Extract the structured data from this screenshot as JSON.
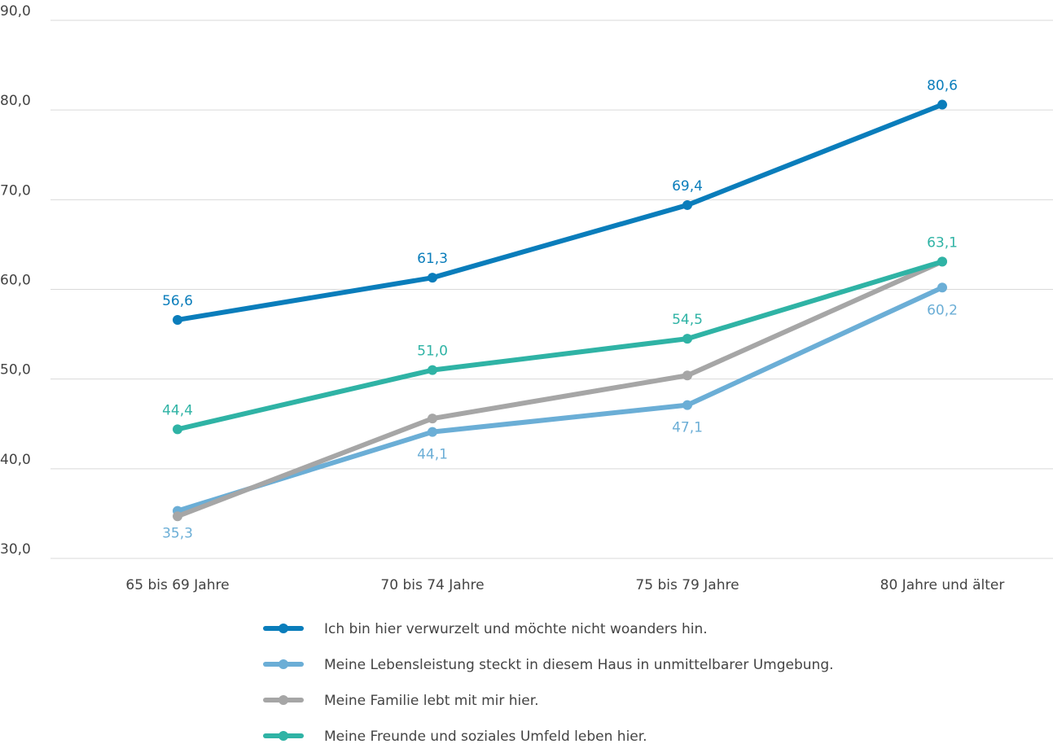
{
  "chart_data": {
    "type": "line",
    "categories": [
      "65 bis 69 Jahre",
      "70 bis 74 Jahre",
      "75 bis 79 Jahre",
      "80 Jahre und älter"
    ],
    "ylim": [
      30,
      90
    ],
    "yticks": [
      "30,0",
      "40,0",
      "50,0",
      "60,0",
      "70,0",
      "80,0",
      "90,0"
    ],
    "ytick_values": [
      30,
      40,
      50,
      60,
      70,
      80,
      90
    ],
    "grid": true,
    "legend_position": "bottom",
    "series": [
      {
        "name": "Ich bin hier verwurzelt und möchte nicht woanders hin.",
        "color": "#0a7dbb",
        "values": [
          56.6,
          61.3,
          69.4,
          80.6
        ],
        "labels": [
          "56,6",
          "61,3",
          "69,4",
          "80,6"
        ],
        "label_side": [
          "above",
          "above",
          "above",
          "above"
        ]
      },
      {
        "name": "Meine Lebensleistung steckt in diesem Haus in unmittelbarer Umgebung.",
        "color": "#6baed6",
        "values": [
          35.3,
          44.1,
          47.1,
          60.2
        ],
        "labels": [
          "35,3",
          "44,1",
          "47,1",
          "60,2"
        ],
        "label_side": [
          "below",
          "below",
          "below",
          "below"
        ]
      },
      {
        "name": "Meine Familie lebt mit mir hier.",
        "color": "#a6a6a6",
        "values": [
          34.7,
          45.6,
          50.4,
          63.1
        ],
        "labels": [
          "",
          "",
          "",
          ""
        ],
        "label_side": [
          "none",
          "none",
          "none",
          "none"
        ]
      },
      {
        "name": "Meine Freunde und soziales Umfeld leben hier.",
        "color": "#2fb3a5",
        "values": [
          44.4,
          51.0,
          54.5,
          63.1
        ],
        "labels": [
          "44,4",
          "51,0",
          "54,5",
          "63,1"
        ],
        "label_side": [
          "above",
          "above",
          "above",
          "above"
        ]
      }
    ]
  }
}
